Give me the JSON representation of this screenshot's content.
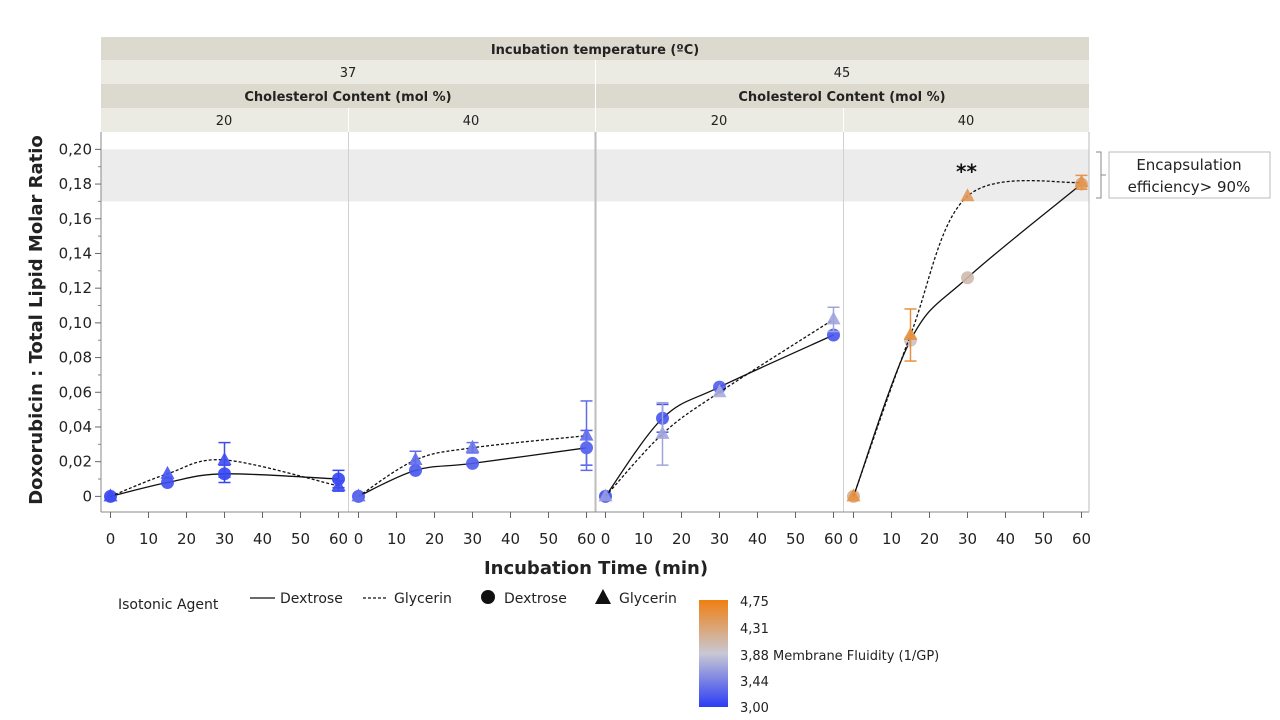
{
  "chart_data": {
    "type": "line",
    "header": {
      "top_title": "Incubation temperature (ºC)",
      "temperatures": [
        "37",
        "45"
      ],
      "sub_title": "Cholesterol Content (mol %)",
      "cholesterol": [
        "20",
        "40",
        "20",
        "40"
      ]
    },
    "xlabel": "Incubation Time (min)",
    "ylabel": "Doxorubicin : Total Lipid Molar Ratio",
    "x_ticks": [
      "0",
      "10",
      "20",
      "30",
      "40",
      "50",
      "60"
    ],
    "x_tick_values": [
      0,
      10,
      20,
      30,
      40,
      50,
      60
    ],
    "xlim": [
      -2.5,
      62.5
    ],
    "y_ticks": [
      "0",
      "0,02",
      "0,04",
      "0,06",
      "0,08",
      "0,10",
      "0,12",
      "0,14",
      "0,16",
      "0,18",
      "0,20"
    ],
    "y_tick_values": [
      0,
      0.02,
      0.04,
      0.06,
      0.08,
      0.1,
      0.12,
      0.14,
      0.16,
      0.18,
      0.2
    ],
    "ylim": [
      -0.009,
      0.21
    ],
    "band": {
      "from": 0.17,
      "to": 0.2,
      "label_lines": [
        "Encapsulation",
        "efficiency> 90%"
      ]
    },
    "legend": {
      "title": "Isotonic Agent",
      "items": [
        {
          "kind": "line-solid",
          "label": "Dextrose"
        },
        {
          "kind": "line-dashed",
          "label": "Glycerin"
        },
        {
          "kind": "circle",
          "label": "Dextrose"
        },
        {
          "kind": "triangle",
          "label": "Glycerin"
        }
      ]
    },
    "colorbar": {
      "title": "Membrane Fluidity (1/GP)",
      "ticks": [
        "4,75",
        "4,31",
        "3,88",
        "3,44",
        "3,00"
      ],
      "tick_values": [
        4.75,
        4.31,
        3.88,
        3.44,
        3.0
      ],
      "range": [
        3.0,
        4.75
      ],
      "colors": [
        "#2b3cf5",
        "#c8c8d4",
        "#f07f12"
      ]
    },
    "panels": [
      {
        "temperature": "37",
        "cholesterol": "20",
        "series": [
          {
            "name": "Dextrose",
            "marker": "circle",
            "line": "solid",
            "x": [
              0,
              15,
              30,
              60
            ],
            "y": [
              0.0,
              0.008,
              0.013,
              0.01
            ],
            "err": [
              0,
              0,
              0.005,
              0.005
            ],
            "fluidity": [
              3.05,
              3.1,
              3.05,
              3.05
            ]
          },
          {
            "name": "Glycerin",
            "marker": "triangle",
            "line": "dashed",
            "x": [
              0,
              15,
              30,
              60
            ],
            "y": [
              0.0,
              0.013,
              0.021,
              0.006
            ],
            "err": [
              0,
              0,
              0.01,
              0.003
            ],
            "fluidity": [
              3.1,
              3.15,
              3.1,
              3.1
            ]
          }
        ]
      },
      {
        "temperature": "37",
        "cholesterol": "40",
        "series": [
          {
            "name": "Dextrose",
            "marker": "circle",
            "line": "solid",
            "x": [
              0,
              15,
              30,
              60
            ],
            "y": [
              0.0,
              0.015,
              0.019,
              0.028
            ],
            "err": [
              0,
              0,
              0,
              0.01
            ],
            "fluidity": [
              3.15,
              3.15,
              3.2,
              3.2
            ]
          },
          {
            "name": "Glycerin",
            "marker": "triangle",
            "line": "dashed",
            "x": [
              0,
              15,
              30,
              60
            ],
            "y": [
              0.0,
              0.021,
              0.028,
              0.035
            ],
            "err": [
              0,
              0.005,
              0.003,
              0.02
            ],
            "fluidity": [
              3.3,
              3.3,
              3.35,
              3.3
            ]
          }
        ]
      },
      {
        "temperature": "45",
        "cholesterol": "20",
        "series": [
          {
            "name": "Dextrose",
            "marker": "circle",
            "line": "solid",
            "x": [
              0,
              15,
              30,
              60
            ],
            "y": [
              0.0,
              0.045,
              0.063,
              0.093
            ],
            "err": [
              0,
              0.008,
              0,
              0
            ],
            "fluidity": [
              3.1,
              3.15,
              3.2,
              3.15
            ]
          },
          {
            "name": "Glycerin",
            "marker": "triangle",
            "line": "dashed",
            "x": [
              0,
              15,
              30,
              60
            ],
            "y": [
              0.0,
              0.036,
              0.06,
              0.102
            ],
            "err": [
              0,
              0.018,
              0,
              0.007
            ],
            "fluidity": [
              3.6,
              3.65,
              3.7,
              3.65
            ]
          }
        ]
      },
      {
        "temperature": "45",
        "cholesterol": "40",
        "series": [
          {
            "name": "Dextrose",
            "marker": "circle",
            "line": "solid",
            "x": [
              0,
              15,
              30,
              60
            ],
            "y": [
              0.0,
              0.09,
              0.126,
              0.18
            ],
            "err": [
              0,
              0,
              0,
              0
            ],
            "fluidity": [
              4.2,
              3.95,
              4.05,
              4.2
            ]
          },
          {
            "name": "Glycerin",
            "marker": "triangle",
            "line": "dashed",
            "x": [
              0,
              15,
              30,
              60
            ],
            "y": [
              0.0,
              0.093,
              0.173,
              0.181
            ],
            "err": [
              0,
              0.015,
              0,
              0.004
            ],
            "fluidity": [
              4.55,
              4.55,
              4.45,
              4.5
            ]
          }
        ],
        "annotation": {
          "text": "**",
          "x": 30,
          "y": 0.185
        }
      }
    ]
  }
}
